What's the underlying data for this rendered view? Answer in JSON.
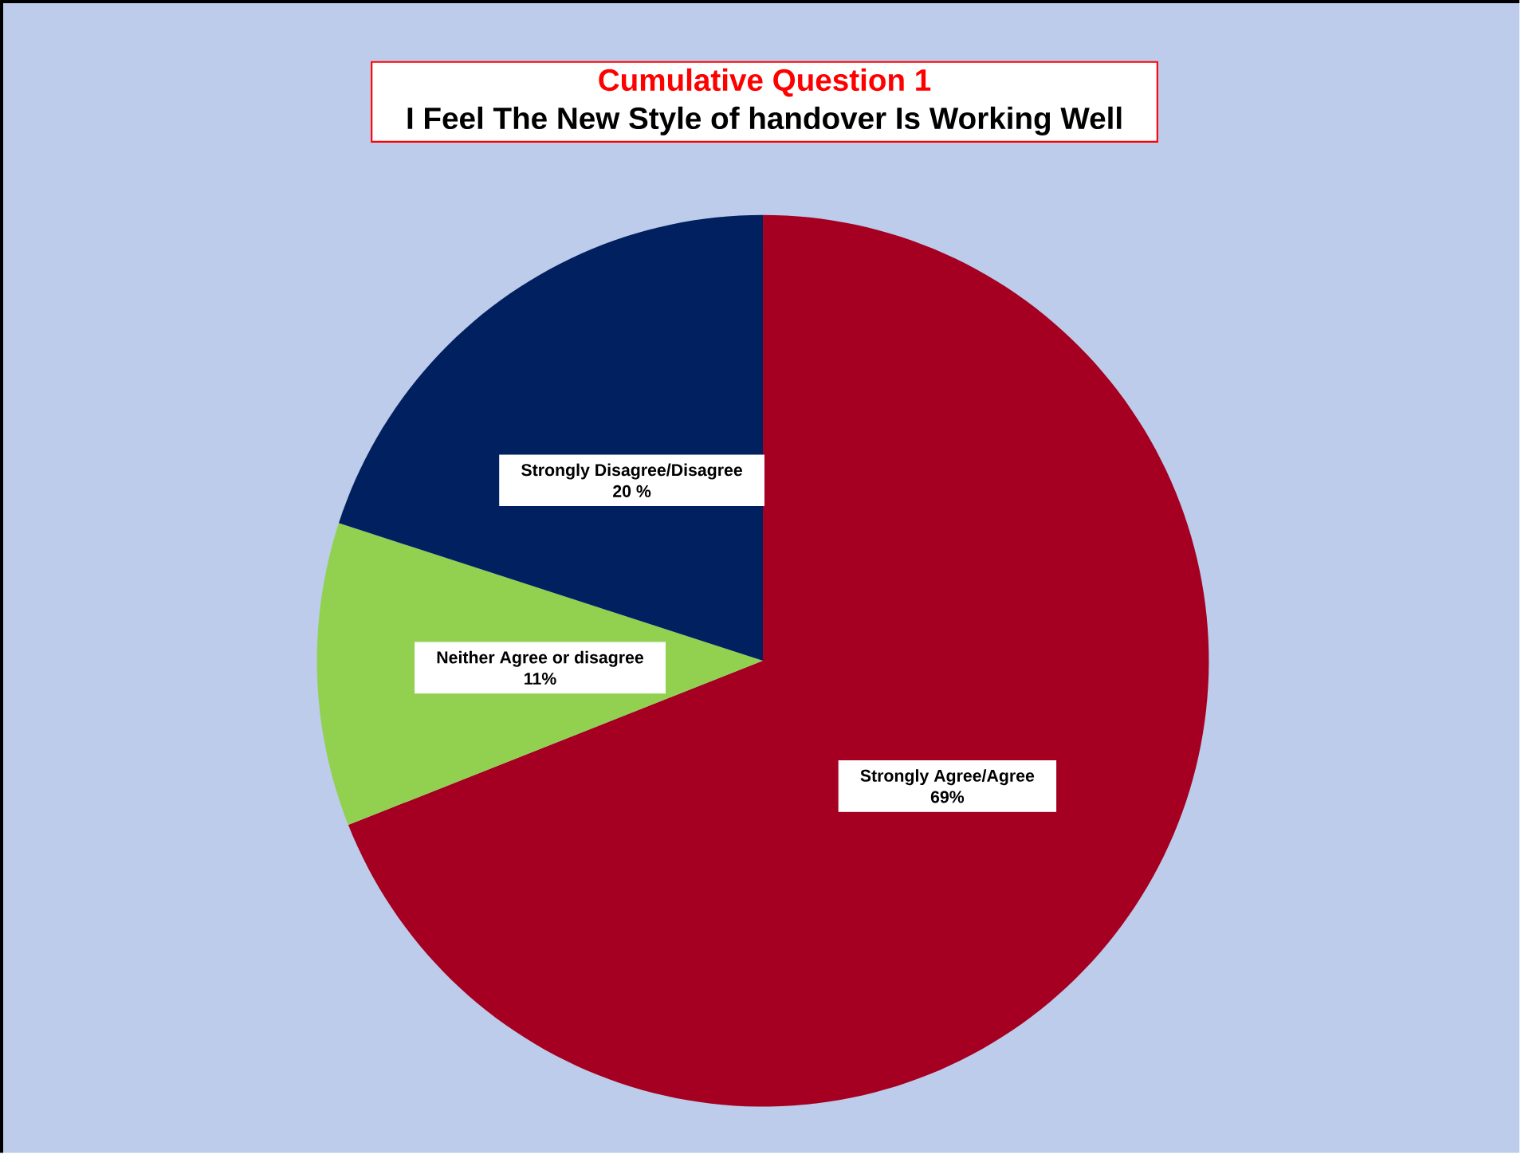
{
  "chart_data": {
    "type": "pie",
    "title": "Cumulative Question 1",
    "subtitle": "I Feel The New Style of handover Is Working Well",
    "categories": [
      "Strongly Agree/Agree",
      "Neither Agree or disagree",
      "Strongly Disagree/Disagree"
    ],
    "values": [
      69,
      11,
      20
    ],
    "value_labels": [
      "69%",
      "11%",
      "20 %"
    ],
    "colors": [
      "#a50021",
      "#92d050",
      "#002060"
    ]
  }
}
